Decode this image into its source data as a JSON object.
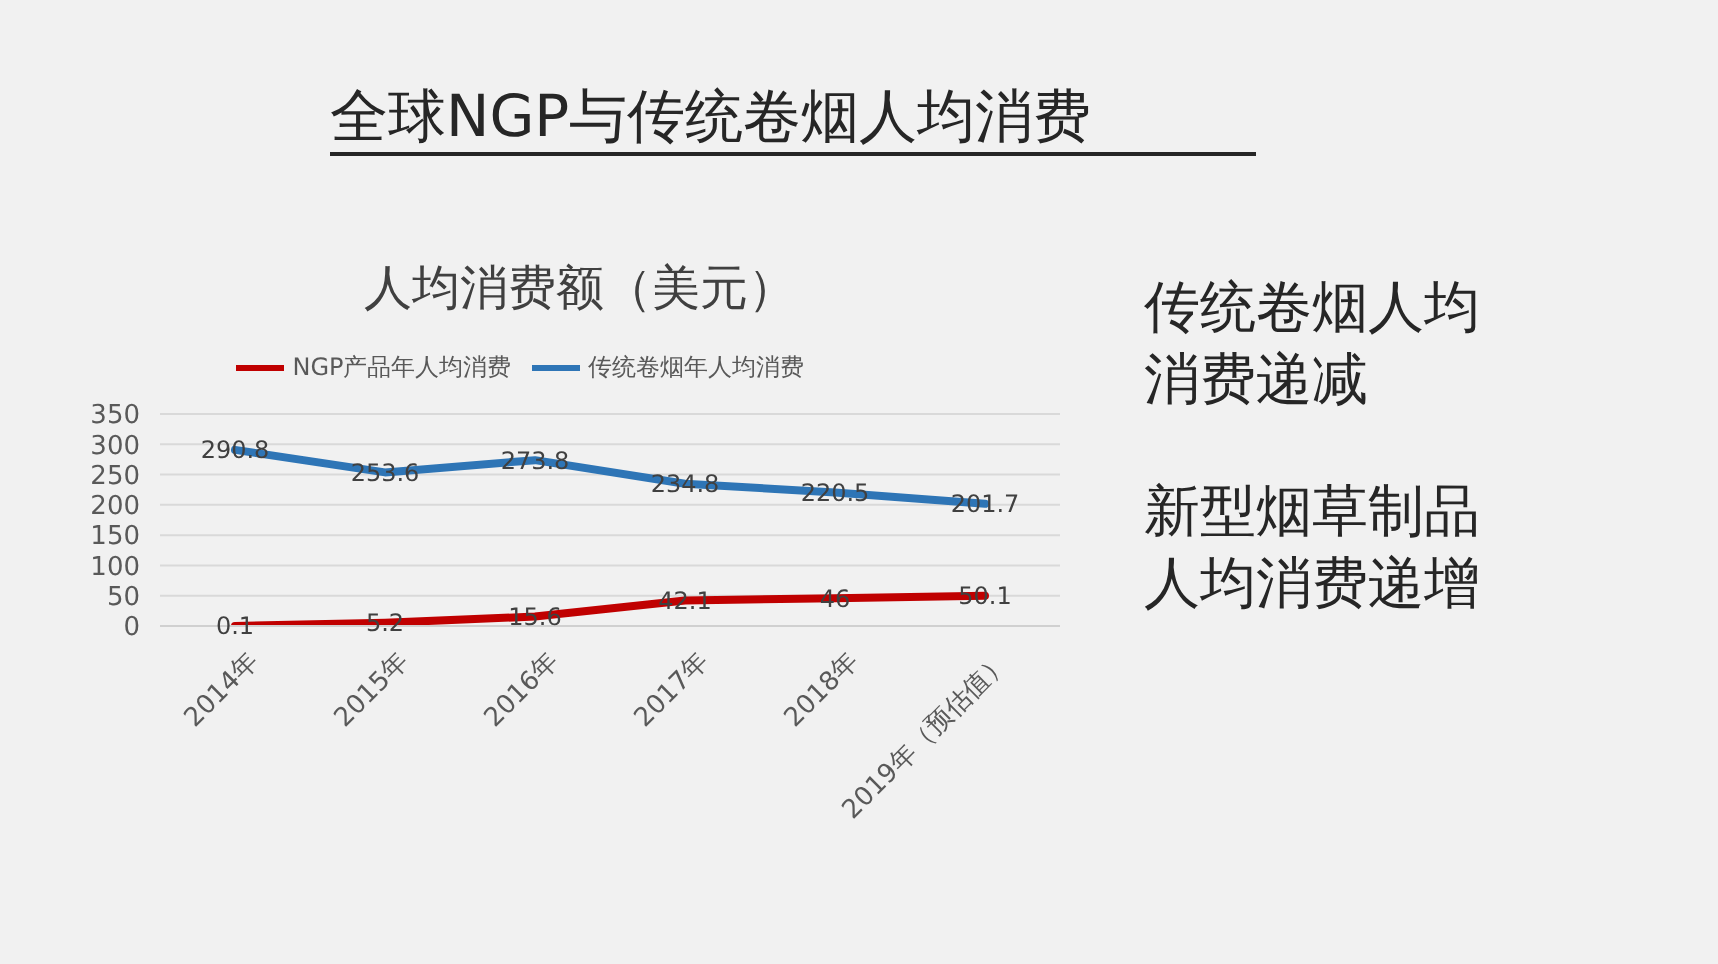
{
  "chart_data": {
    "type": "line",
    "title": "全球NGP与传统卷烟人均消费",
    "subtitle": "人均消费额（美元）",
    "categories": [
      "2014年",
      "2015年",
      "2016年",
      "2017年",
      "2018年",
      "2019年（预估值）"
    ],
    "series": [
      {
        "name": "NGP产品年人均消费",
        "color": "#c00000",
        "values": [
          0.1,
          5.2,
          15.6,
          42.1,
          46,
          50.1
        ]
      },
      {
        "name": "传统卷烟年人均消费",
        "color": "#2e75b6",
        "values": [
          290.8,
          253.6,
          273.8,
          234.8,
          220.5,
          201.7
        ]
      }
    ],
    "ylim": [
      0,
      350
    ],
    "yticks": [
      0,
      50,
      100,
      150,
      200,
      250,
      300,
      350
    ],
    "grid": "y",
    "legend": "top",
    "data_labels": true,
    "marker": "none",
    "line_style": "solid",
    "annotations": [
      "传统卷烟人均消费递减",
      "新型烟草制品人均消费递增"
    ]
  }
}
